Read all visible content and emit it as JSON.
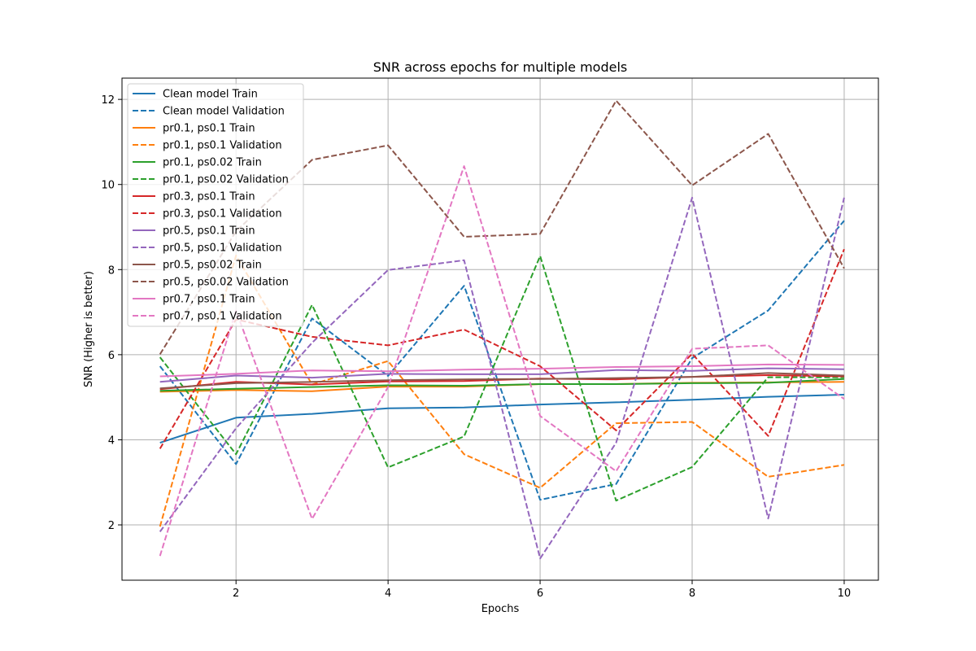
{
  "chart_data": {
    "type": "line",
    "title": "SNR across epochs for multiple models",
    "xlabel": "Epochs",
    "ylabel": "SNR (Higher is better)",
    "xlim": [
      0.5,
      10.45
    ],
    "ylim": [
      0.7,
      12.5
    ],
    "xticks": [
      2,
      4,
      6,
      8,
      10
    ],
    "yticks": [
      2,
      4,
      6,
      8,
      10,
      12
    ],
    "grid": true,
    "legend_position": "upper-left",
    "x": [
      1,
      2,
      3,
      4,
      5,
      6,
      7,
      8,
      9,
      10
    ],
    "series": [
      {
        "name": "Clean model Train",
        "color": "#1f77b4",
        "dash": "solid",
        "values": [
          3.93,
          4.52,
          4.61,
          4.74,
          4.76,
          4.83,
          4.88,
          4.94,
          5.01,
          5.06
        ]
      },
      {
        "name": "Clean model Validation",
        "color": "#1f77b4",
        "dash": "dashed",
        "values": [
          5.73,
          3.43,
          6.85,
          5.5,
          7.62,
          2.59,
          2.96,
          5.92,
          7.04,
          9.15
        ]
      },
      {
        "name": "pr0.1, ps0.1 Train",
        "color": "#ff7f0e",
        "dash": "solid",
        "values": [
          5.13,
          5.17,
          5.14,
          5.25,
          5.25,
          5.31,
          5.31,
          5.34,
          5.35,
          5.36
        ]
      },
      {
        "name": "pr0.1, ps0.1 Validation",
        "color": "#ff7f0e",
        "dash": "dashed",
        "values": [
          1.96,
          8.33,
          5.3,
          5.85,
          3.66,
          2.87,
          4.39,
          4.42,
          3.13,
          3.41
        ]
      },
      {
        "name": "pr0.1, ps0.02 Train",
        "color": "#2ca02c",
        "dash": "solid",
        "values": [
          5.15,
          5.2,
          5.24,
          5.28,
          5.27,
          5.31,
          5.31,
          5.33,
          5.34,
          5.43
        ]
      },
      {
        "name": "pr0.1, ps0.02 Validation",
        "color": "#2ca02c",
        "dash": "dashed",
        "values": [
          5.94,
          3.66,
          7.17,
          3.35,
          4.08,
          8.32,
          2.57,
          3.36,
          5.47,
          5.47
        ]
      },
      {
        "name": "pr0.3, ps0.1 Train",
        "color": "#d62728",
        "dash": "solid",
        "values": [
          5.19,
          5.36,
          5.3,
          5.37,
          5.38,
          5.44,
          5.42,
          5.48,
          5.52,
          5.49
        ]
      },
      {
        "name": "pr0.3, ps0.1 Validation",
        "color": "#d62728",
        "dash": "dashed",
        "values": [
          3.79,
          6.83,
          6.42,
          6.22,
          6.59,
          5.73,
          4.22,
          6.02,
          4.09,
          8.48
        ]
      },
      {
        "name": "pr0.5, ps0.1 Train",
        "color": "#9467bd",
        "dash": "solid",
        "values": [
          5.36,
          5.51,
          5.46,
          5.55,
          5.54,
          5.54,
          5.64,
          5.62,
          5.68,
          5.66
        ]
      },
      {
        "name": "pr0.5, ps0.1 Validation",
        "color": "#9467bd",
        "dash": "dashed",
        "values": [
          1.84,
          4.27,
          6.28,
          7.99,
          8.22,
          1.21,
          3.93,
          9.69,
          2.15,
          9.69
        ]
      },
      {
        "name": "pr0.5, ps0.02 Train",
        "color": "#8c564b",
        "dash": "solid",
        "values": [
          5.21,
          5.33,
          5.36,
          5.4,
          5.42,
          5.43,
          5.45,
          5.48,
          5.57,
          5.51
        ]
      },
      {
        "name": "pr0.5, ps0.02 Validation",
        "color": "#8c564b",
        "dash": "dashed",
        "values": [
          6.01,
          8.9,
          10.58,
          10.92,
          8.77,
          8.84,
          11.97,
          9.98,
          11.19,
          8.03
        ]
      },
      {
        "name": "pr0.7, ps0.1 Train",
        "color": "#e377c2",
        "dash": "solid",
        "values": [
          5.49,
          5.55,
          5.63,
          5.61,
          5.65,
          5.67,
          5.71,
          5.73,
          5.77,
          5.76
        ]
      },
      {
        "name": "pr0.7, ps0.1 Validation",
        "color": "#e377c2",
        "dash": "dashed",
        "values": [
          1.27,
          7.04,
          2.14,
          5.24,
          10.43,
          4.56,
          3.26,
          6.14,
          6.22,
          4.96
        ]
      }
    ]
  }
}
